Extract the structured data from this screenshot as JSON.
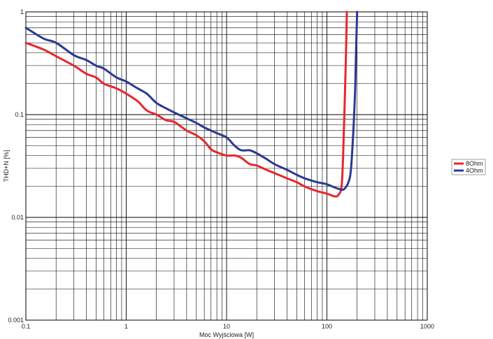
{
  "chart_data": {
    "type": "line",
    "title": "",
    "xlabel": "Moc Wyjściowa [W]",
    "ylabel": "THD+N [%]",
    "xscale": "log",
    "yscale": "log",
    "xlim": [
      0.1,
      1000
    ],
    "ylim": [
      0.001,
      1
    ],
    "grid": true,
    "legend_position": "right",
    "x_ticks": [
      "0.1",
      "1",
      "10",
      "100",
      "1000"
    ],
    "y_ticks": [
      "0.001",
      "0.01",
      "0.1",
      "1"
    ],
    "series": [
      {
        "name": "8Ohm",
        "color": "#e8262c",
        "points": [
          [
            0.1,
            0.5
          ],
          [
            0.15,
            0.43
          ],
          [
            0.2,
            0.37
          ],
          [
            0.3,
            0.3
          ],
          [
            0.4,
            0.25
          ],
          [
            0.5,
            0.23
          ],
          [
            0.6,
            0.2
          ],
          [
            0.8,
            0.18
          ],
          [
            1,
            0.16
          ],
          [
            1.3,
            0.135
          ],
          [
            1.6,
            0.11
          ],
          [
            2,
            0.1
          ],
          [
            2.5,
            0.088
          ],
          [
            3,
            0.085
          ],
          [
            4,
            0.07
          ],
          [
            5,
            0.063
          ],
          [
            6,
            0.055
          ],
          [
            7,
            0.046
          ],
          [
            8,
            0.043
          ],
          [
            10,
            0.04
          ],
          [
            12,
            0.04
          ],
          [
            14,
            0.038
          ],
          [
            17,
            0.033
          ],
          [
            20,
            0.032
          ],
          [
            25,
            0.029
          ],
          [
            30,
            0.027
          ],
          [
            40,
            0.024
          ],
          [
            50,
            0.022
          ],
          [
            60,
            0.02
          ],
          [
            80,
            0.018
          ],
          [
            100,
            0.017
          ],
          [
            120,
            0.016
          ],
          [
            130,
            0.0165
          ],
          [
            140,
            0.02
          ],
          [
            145,
            0.04
          ],
          [
            150,
            0.12
          ],
          [
            155,
            0.4
          ],
          [
            158,
            1
          ]
        ]
      },
      {
        "name": "4Ohm",
        "color": "#2b3990",
        "points": [
          [
            0.1,
            0.7
          ],
          [
            0.15,
            0.55
          ],
          [
            0.2,
            0.5
          ],
          [
            0.3,
            0.38
          ],
          [
            0.4,
            0.34
          ],
          [
            0.5,
            0.3
          ],
          [
            0.6,
            0.28
          ],
          [
            0.8,
            0.23
          ],
          [
            1,
            0.21
          ],
          [
            1.3,
            0.18
          ],
          [
            1.6,
            0.16
          ],
          [
            2,
            0.13
          ],
          [
            2.5,
            0.115
          ],
          [
            3,
            0.105
          ],
          [
            4,
            0.092
          ],
          [
            5,
            0.083
          ],
          [
            6,
            0.075
          ],
          [
            8,
            0.066
          ],
          [
            10,
            0.06
          ],
          [
            12,
            0.05
          ],
          [
            14,
            0.045
          ],
          [
            17,
            0.045
          ],
          [
            20,
            0.042
          ],
          [
            25,
            0.037
          ],
          [
            30,
            0.033
          ],
          [
            40,
            0.029
          ],
          [
            50,
            0.026
          ],
          [
            60,
            0.024
          ],
          [
            80,
            0.022
          ],
          [
            100,
            0.021
          ],
          [
            130,
            0.019
          ],
          [
            150,
            0.019
          ],
          [
            170,
            0.025
          ],
          [
            180,
            0.05
          ],
          [
            190,
            0.15
          ],
          [
            195,
            0.4
          ],
          [
            200,
            1
          ]
        ]
      }
    ]
  }
}
